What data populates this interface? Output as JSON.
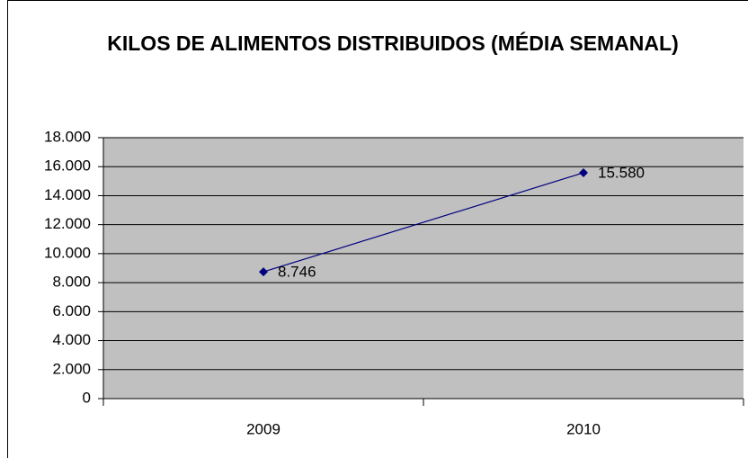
{
  "chart_data": {
    "type": "line",
    "title": "KILOS DE ALIMENTOS DISTRIBUIDOS (MÉDIA SEMANAL)",
    "categories": [
      "2009",
      "2010"
    ],
    "values": [
      8746,
      15580
    ],
    "value_labels": [
      "8.746",
      "15.580"
    ],
    "color": "#000080",
    "ylim": [
      0,
      18000
    ],
    "yticks": [
      0,
      {
        "value": 2000,
        "label": "2.000"
      },
      {
        "value": 4000,
        "label": "4.000"
      },
      {
        "value": 6000,
        "label": "6.000"
      },
      {
        "value": 8000,
        "label": "8.000"
      },
      {
        "value": 10000,
        "label": "10.000"
      },
      {
        "value": 12000,
        "label": "12.000"
      },
      {
        "value": 14000,
        "label": "14.000"
      },
      {
        "value": 16000,
        "label": "16.000"
      },
      {
        "value": 18000,
        "label": "18.000"
      }
    ],
    "grid": true
  }
}
